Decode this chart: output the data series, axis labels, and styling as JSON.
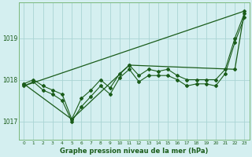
{
  "xlabel": "Graphe pression niveau de la mer (hPa)",
  "background_color": "#d4eff0",
  "grid_color": "#aad4d4",
  "line_color": "#1a5c1a",
  "text_color": "#1a5c1a",
  "spine_color": "#7ab87a",
  "xlim_min": -0.5,
  "xlim_max": 23.5,
  "ylim_min": 1016.55,
  "ylim_max": 1019.85,
  "yticks": [
    1017,
    1018,
    1019
  ],
  "xtick_labels": [
    "0",
    "1",
    "2",
    "3",
    "4",
    "5",
    "6",
    "7",
    "8",
    "9",
    "10",
    "11",
    "12",
    "13",
    "14",
    "15",
    "16",
    "17",
    "18",
    "19",
    "20",
    "21",
    "22",
    "23"
  ],
  "series1": [
    1017.9,
    1018.0,
    1017.85,
    1017.75,
    1017.65,
    1017.05,
    1017.55,
    1017.75,
    1018.0,
    1017.8,
    1018.15,
    1018.35,
    1018.1,
    1018.25,
    1018.2,
    1018.25,
    1018.1,
    1018.0,
    1018.0,
    1018.0,
    1018.0,
    1018.25,
    1019.0,
    1019.6
  ],
  "series2": [
    1017.85,
    1017.95,
    1017.75,
    1017.65,
    1017.5,
    1017.0,
    1017.35,
    1017.6,
    1017.85,
    1017.65,
    1018.05,
    1018.25,
    1017.95,
    1018.1,
    1018.1,
    1018.1,
    1018.0,
    1017.85,
    1017.9,
    1017.9,
    1017.85,
    1018.15,
    1018.9,
    1019.5
  ],
  "series3_x": [
    0,
    5,
    11,
    22,
    23
  ],
  "series3_y": [
    1017.9,
    1017.05,
    1018.35,
    1018.25,
    1019.65
  ],
  "series4_x": [
    0,
    23
  ],
  "series4_y": [
    1017.85,
    1019.65
  ]
}
